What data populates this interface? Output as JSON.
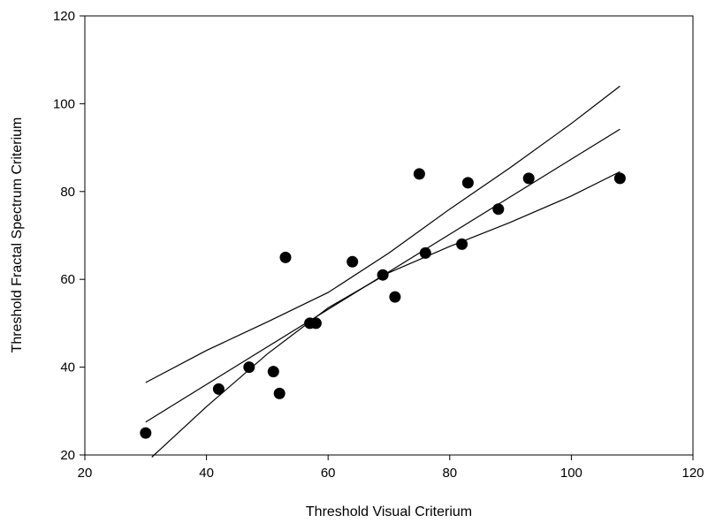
{
  "chart_data": {
    "type": "scatter",
    "title": "",
    "xlabel": "Threshold Visual Criterium",
    "ylabel": "Threshold Fractal Spectrum Criterium",
    "xlim": [
      20,
      120
    ],
    "ylim": [
      20,
      120
    ],
    "xticks": [
      "20",
      "40",
      "60",
      "80",
      "100",
      "120"
    ],
    "yticks": [
      "20",
      "40",
      "60",
      "80",
      "100",
      "120"
    ],
    "grid": false,
    "legend": "none",
    "colors": {
      "points": "#000000",
      "lines": "#000000",
      "axes": "#000000"
    },
    "series": [
      {
        "kind": "points",
        "x": [
          30,
          42,
          47,
          51,
          52,
          53,
          57,
          58,
          64,
          69,
          71,
          75,
          76,
          82,
          83,
          88,
          93,
          108
        ],
        "y": [
          25,
          35,
          40,
          39,
          34,
          65,
          50,
          50,
          64,
          61,
          56,
          84,
          66,
          68,
          82,
          76,
          83,
          83
        ]
      },
      {
        "kind": "line",
        "x": [
          30,
          108
        ],
        "y": [
          27.5,
          94.2
        ]
      },
      {
        "kind": "line",
        "x": [
          30,
          40,
          50,
          60,
          70,
          80,
          90,
          100,
          108
        ],
        "y": [
          36.5,
          43.8,
          50.3,
          57.0,
          66.0,
          76.0,
          85.5,
          95.5,
          104.0
        ]
      },
      {
        "kind": "line",
        "x": [
          31,
          40,
          50,
          60,
          70,
          80,
          90,
          100,
          108
        ],
        "y": [
          19.5,
          31.0,
          43.0,
          53.5,
          61.5,
          67.5,
          73.0,
          79.0,
          84.5
        ]
      }
    ]
  }
}
